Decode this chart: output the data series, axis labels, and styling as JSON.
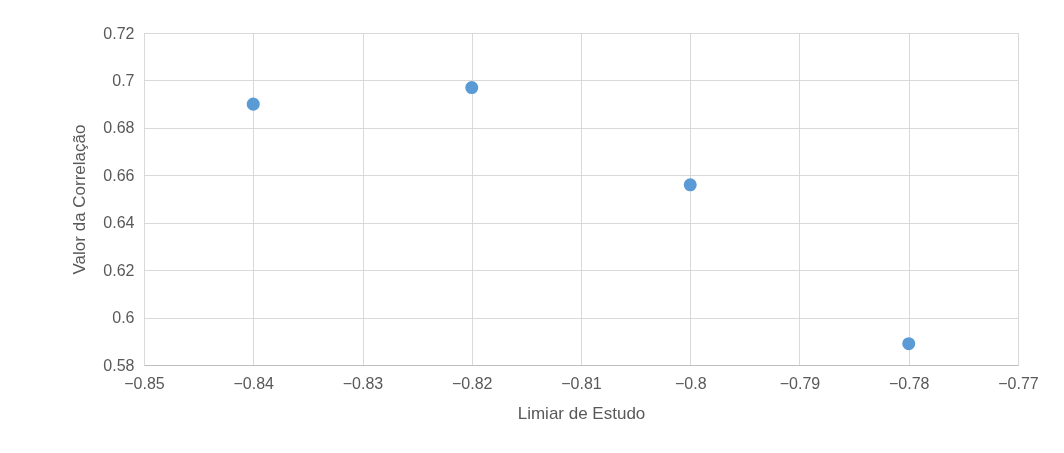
{
  "chart_data": {
    "type": "scatter",
    "xlabel": "Limiar de Estudo",
    "ylabel": "Valor da Correlação",
    "x": [
      -0.84,
      -0.82,
      -0.8,
      -0.78
    ],
    "series": [
      {
        "color": "#5b9bd5",
        "values": [
          0.69,
          0.697,
          0.656,
          0.589
        ]
      }
    ],
    "xlim": [
      -0.85,
      -0.77
    ],
    "xticks": [
      -0.85,
      -0.84,
      -0.83,
      -0.82,
      -0.81,
      -0.8,
      -0.79,
      -0.78,
      -0.77
    ],
    "ylim": [
      0.58,
      0.72
    ],
    "yticks": [
      0.58,
      0.6,
      0.62,
      0.64,
      0.66,
      0.68,
      0.7,
      0.72
    ],
    "grid": true,
    "marker": "circle",
    "legend": false
  }
}
